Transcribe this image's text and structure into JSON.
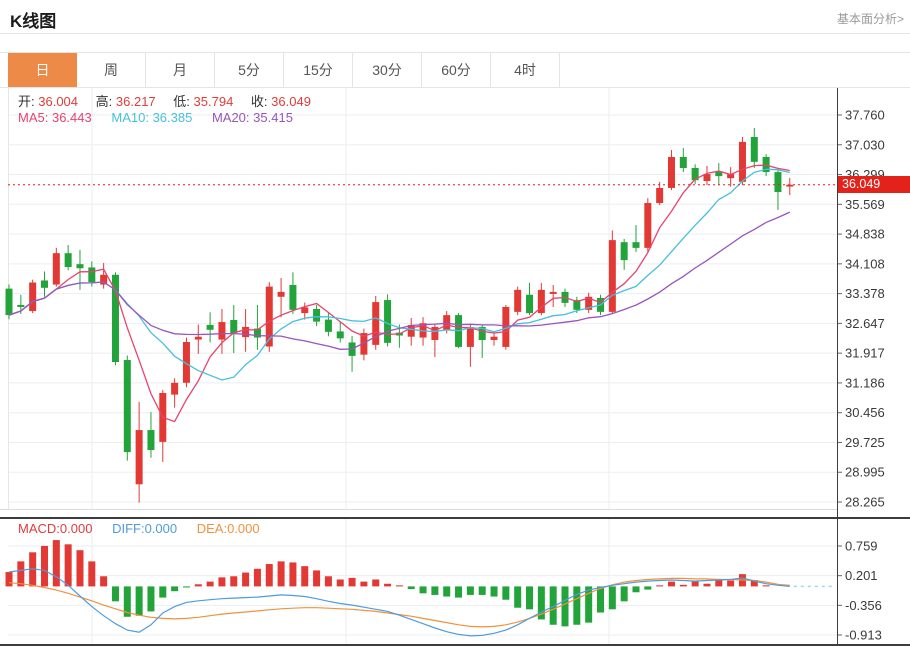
{
  "page": {
    "title": "K线图",
    "link_label": "基本面分析>"
  },
  "tabs": {
    "items": [
      "日",
      "周",
      "月",
      "5分",
      "15分",
      "30分",
      "60分",
      "4时"
    ],
    "active_index": 0
  },
  "legend": {
    "open_label": "开:",
    "open": "36.004",
    "high_label": "高:",
    "high": "36.217",
    "low_label": "低:",
    "low": "35.794",
    "close_label": "收:",
    "close": "36.049",
    "ma5_label": "MA5:",
    "ma5": "36.443",
    "ma10_label": "MA10:",
    "ma10": "36.385",
    "ma20_label": "MA20:",
    "ma20": "35.415"
  },
  "macd_legend": {
    "macd_label": "MACD:",
    "macd": "0.000",
    "diff_label": "DIFF:",
    "diff": "0.000",
    "dea_label": "DEA:",
    "dea": "0.000"
  },
  "colors": {
    "up": "#e23934",
    "down": "#22a43a",
    "ma5": "#e8436e",
    "ma10": "#45c0dc",
    "ma20": "#9955bb",
    "value_red": "#e23b3b",
    "label_dark": "#333333",
    "diff_blue": "#4f9be0",
    "dea_orange": "#f0923c",
    "tab_active": "#ee8a47",
    "price_line": "#e22018",
    "badge_bg": "#e3231b",
    "grid": "#ebeef1",
    "axis": "#3d3d3d",
    "tick_text": "#3a3a3a",
    "macd_tail": "#9fd6e8"
  },
  "chart_data": [
    {
      "type": "candlestick",
      "title": "K线图",
      "legend_ohlc": {
        "open": 36.004,
        "high": 36.217,
        "low": 35.794,
        "close": 36.049
      },
      "ma_periods": [
        5,
        10,
        20
      ],
      "ma_values": {
        "MA5": 36.443,
        "MA10": 36.385,
        "MA20": 35.415
      },
      "current_price": "36.049",
      "y_ticks": [
        "37.760",
        "37.030",
        "36.299",
        "35.569",
        "34.838",
        "34.108",
        "33.378",
        "32.647",
        "31.917",
        "31.186",
        "30.456",
        "29.725",
        "28.995",
        "28.265"
      ],
      "ylim": [
        28.265,
        37.76
      ],
      "grid": true,
      "candles_format": [
        "open",
        "high",
        "low",
        "close"
      ],
      "candles": [
        [
          33.5,
          33.6,
          32.75,
          32.85
        ],
        [
          33.1,
          33.35,
          32.88,
          33.05
        ],
        [
          32.95,
          33.72,
          32.9,
          33.65
        ],
        [
          33.7,
          33.92,
          33.3,
          33.52
        ],
        [
          33.6,
          34.5,
          33.55,
          34.37
        ],
        [
          34.37,
          34.57,
          33.95,
          34.03
        ],
        [
          34.1,
          34.45,
          33.47,
          34.0
        ],
        [
          34.02,
          34.17,
          33.55,
          33.66
        ],
        [
          33.6,
          34.13,
          33.5,
          33.84
        ],
        [
          33.84,
          33.9,
          31.62,
          31.7
        ],
        [
          31.75,
          31.86,
          29.28,
          29.49
        ],
        [
          28.7,
          30.72,
          28.25,
          30.03
        ],
        [
          30.03,
          30.47,
          29.35,
          29.54
        ],
        [
          29.74,
          31.01,
          29.25,
          30.94
        ],
        [
          30.9,
          31.3,
          30.58,
          31.19
        ],
        [
          31.19,
          32.3,
          31.08,
          32.19
        ],
        [
          32.25,
          32.62,
          31.9,
          32.32
        ],
        [
          32.61,
          32.92,
          32.18,
          32.49
        ],
        [
          32.25,
          33.0,
          31.9,
          32.68
        ],
        [
          32.73,
          33.1,
          31.92,
          32.41
        ],
        [
          32.31,
          33.0,
          31.95,
          32.56
        ],
        [
          32.52,
          33.1,
          32.0,
          32.3
        ],
        [
          32.08,
          33.66,
          31.95,
          33.55
        ],
        [
          33.3,
          33.76,
          32.8,
          33.42
        ],
        [
          33.59,
          33.9,
          32.88,
          32.98
        ],
        [
          32.9,
          33.16,
          32.74,
          33.04
        ],
        [
          33.0,
          33.1,
          32.58,
          32.69
        ],
        [
          32.74,
          32.9,
          32.33,
          32.44
        ],
        [
          32.45,
          32.7,
          32.18,
          32.28
        ],
        [
          32.18,
          32.34,
          31.46,
          31.85
        ],
        [
          31.88,
          32.52,
          31.74,
          32.41
        ],
        [
          32.12,
          33.32,
          32.0,
          33.17
        ],
        [
          33.22,
          33.36,
          32.08,
          32.17
        ],
        [
          32.42,
          32.62,
          32.05,
          32.35
        ],
        [
          32.32,
          32.78,
          32.1,
          32.61
        ],
        [
          32.3,
          32.8,
          32.1,
          32.65
        ],
        [
          32.24,
          32.62,
          31.82,
          32.56
        ],
        [
          32.49,
          32.95,
          32.4,
          32.85
        ],
        [
          32.85,
          32.9,
          32.04,
          32.07
        ],
        [
          32.07,
          32.62,
          31.58,
          32.56
        ],
        [
          32.56,
          32.62,
          31.8,
          32.24
        ],
        [
          32.24,
          32.4,
          32.1,
          32.32
        ],
        [
          32.07,
          33.1,
          32.0,
          33.05
        ],
        [
          32.93,
          33.55,
          32.85,
          33.47
        ],
        [
          33.35,
          33.64,
          32.85,
          32.9
        ],
        [
          32.9,
          33.64,
          32.85,
          33.47
        ],
        [
          33.37,
          33.59,
          33.05,
          33.42
        ],
        [
          33.42,
          33.5,
          33.05,
          33.15
        ],
        [
          33.22,
          33.3,
          32.9,
          32.98
        ],
        [
          32.98,
          33.4,
          32.9,
          33.3
        ],
        [
          33.27,
          33.35,
          32.85,
          32.93
        ],
        [
          32.93,
          34.93,
          32.88,
          34.69
        ],
        [
          34.64,
          34.72,
          33.96,
          34.2
        ],
        [
          34.64,
          35.06,
          34.4,
          34.5
        ],
        [
          34.5,
          35.72,
          34.4,
          35.6
        ],
        [
          35.6,
          36.12,
          35.55,
          35.97
        ],
        [
          35.97,
          36.9,
          35.92,
          36.73
        ],
        [
          36.73,
          36.95,
          36.36,
          36.46
        ],
        [
          36.46,
          36.55,
          36.07,
          36.16
        ],
        [
          36.14,
          36.51,
          36.04,
          36.31
        ],
        [
          36.36,
          36.58,
          36.04,
          36.26
        ],
        [
          36.21,
          36.48,
          36.0,
          36.31
        ],
        [
          36.12,
          37.22,
          36.04,
          37.1
        ],
        [
          37.22,
          37.44,
          36.46,
          36.61
        ],
        [
          36.73,
          36.8,
          36.26,
          36.36
        ],
        [
          36.36,
          36.43,
          35.43,
          35.87
        ],
        [
          36.004,
          36.217,
          35.794,
          36.049
        ]
      ]
    },
    {
      "type": "macd",
      "y_ticks": [
        "0.759",
        "0.201",
        "-0.356",
        "-0.913"
      ],
      "legend": {
        "MACD": 0.0,
        "DIFF": 0.0,
        "DEA": 0.0
      },
      "hist": [
        0.27,
        0.47,
        0.64,
        0.76,
        0.87,
        0.79,
        0.68,
        0.47,
        0.19,
        -0.28,
        -0.57,
        -0.55,
        -0.47,
        -0.21,
        -0.09,
        -0.02,
        0.04,
        0.09,
        0.17,
        0.19,
        0.26,
        0.33,
        0.42,
        0.47,
        0.45,
        0.38,
        0.3,
        0.19,
        0.13,
        0.16,
        0.09,
        0.13,
        0.05,
        0.02,
        -0.05,
        -0.13,
        -0.16,
        -0.19,
        -0.21,
        -0.16,
        -0.16,
        -0.19,
        -0.25,
        -0.4,
        -0.43,
        -0.62,
        -0.72,
        -0.75,
        -0.72,
        -0.68,
        -0.49,
        -0.43,
        -0.28,
        -0.11,
        -0.06,
        0.02,
        0.09,
        0.03,
        0.11,
        0.05,
        0.14,
        0.11,
        0.23,
        0.12,
        0.02,
        0.0,
        0.0
      ],
      "diff": [
        0.27,
        0.3,
        0.33,
        0.3,
        0.18,
        0.02,
        -0.18,
        -0.38,
        -0.55,
        -0.7,
        -0.82,
        -0.86,
        -0.72,
        -0.5,
        -0.38,
        -0.3,
        -0.27,
        -0.25,
        -0.23,
        -0.22,
        -0.21,
        -0.2,
        -0.18,
        -0.16,
        -0.17,
        -0.19,
        -0.23,
        -0.28,
        -0.32,
        -0.35,
        -0.39,
        -0.43,
        -0.47,
        -0.54,
        -0.62,
        -0.7,
        -0.78,
        -0.85,
        -0.9,
        -0.93,
        -0.92,
        -0.88,
        -0.82,
        -0.72,
        -0.6,
        -0.48,
        -0.38,
        -0.26,
        -0.15,
        -0.07,
        -0.02,
        0.02,
        0.05,
        0.08,
        0.1,
        0.11,
        0.12,
        0.11,
        0.1,
        0.11,
        0.12,
        0.13,
        0.16,
        0.1,
        0.05,
        0.02,
        0.0
      ],
      "dea": [
        0.07,
        0.05,
        0.02,
        -0.02,
        -0.07,
        -0.13,
        -0.2,
        -0.27,
        -0.35,
        -0.42,
        -0.49,
        -0.54,
        -0.58,
        -0.6,
        -0.61,
        -0.6,
        -0.58,
        -0.55,
        -0.52,
        -0.5,
        -0.48,
        -0.46,
        -0.44,
        -0.42,
        -0.41,
        -0.4,
        -0.4,
        -0.41,
        -0.42,
        -0.43,
        -0.45,
        -0.47,
        -0.5,
        -0.53,
        -0.56,
        -0.6,
        -0.64,
        -0.68,
        -0.72,
        -0.75,
        -0.76,
        -0.75,
        -0.72,
        -0.67,
        -0.6,
        -0.52,
        -0.43,
        -0.33,
        -0.23,
        -0.13,
        -0.04,
        0.03,
        0.08,
        0.11,
        0.13,
        0.14,
        0.15,
        0.15,
        0.14,
        0.14,
        0.13,
        0.13,
        0.12,
        0.11,
        0.08,
        0.04,
        0.02
      ]
    }
  ]
}
